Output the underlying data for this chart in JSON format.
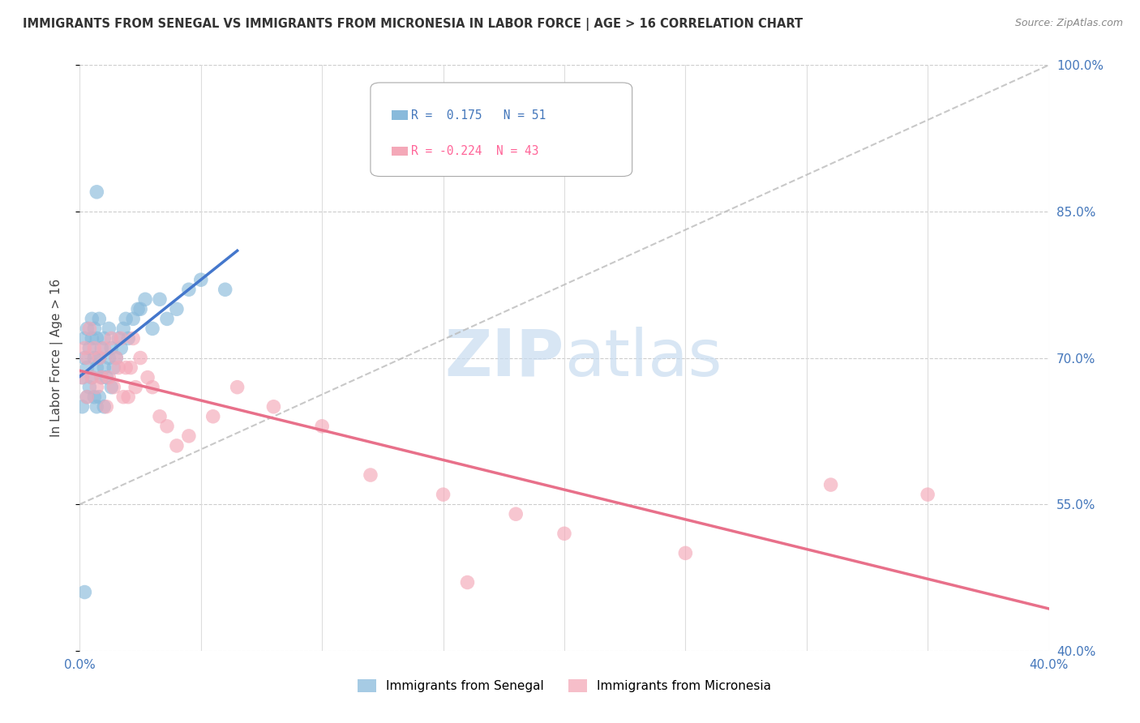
{
  "title": "IMMIGRANTS FROM SENEGAL VS IMMIGRANTS FROM MICRONESIA IN LABOR FORCE | AGE > 16 CORRELATION CHART",
  "source": "Source: ZipAtlas.com",
  "ylabel": "In Labor Force | Age > 16",
  "r_senegal": 0.175,
  "n_senegal": 51,
  "r_micronesia": -0.224,
  "n_micronesia": 43,
  "xlim": [
    0.0,
    0.4
  ],
  "ylim": [
    0.4,
    1.0
  ],
  "yticks": [
    0.4,
    0.55,
    0.7,
    0.85,
    1.0
  ],
  "xticks": [
    0.0,
    0.05,
    0.1,
    0.15,
    0.2,
    0.25,
    0.3,
    0.35,
    0.4
  ],
  "color_senegal": "#89BADB",
  "color_micronesia": "#F4A8B8",
  "color_sen_line": "#4477CC",
  "color_mic_line": "#E8708A",
  "color_diag": "#BBBBBB",
  "watermark_color": "#E0E8F0",
  "senegal_x": [
    0.001,
    0.001,
    0.002,
    0.002,
    0.003,
    0.003,
    0.003,
    0.004,
    0.004,
    0.005,
    0.005,
    0.005,
    0.006,
    0.006,
    0.006,
    0.007,
    0.007,
    0.007,
    0.008,
    0.008,
    0.008,
    0.009,
    0.009,
    0.01,
    0.01,
    0.01,
    0.011,
    0.012,
    0.012,
    0.013,
    0.013,
    0.014,
    0.015,
    0.016,
    0.017,
    0.018,
    0.019,
    0.02,
    0.022,
    0.024,
    0.025,
    0.027,
    0.03,
    0.033,
    0.036,
    0.04,
    0.045,
    0.05,
    0.06,
    0.002,
    0.007
  ],
  "senegal_y": [
    0.65,
    0.68,
    0.7,
    0.72,
    0.66,
    0.69,
    0.73,
    0.67,
    0.71,
    0.68,
    0.72,
    0.74,
    0.66,
    0.7,
    0.73,
    0.65,
    0.69,
    0.72,
    0.66,
    0.7,
    0.74,
    0.68,
    0.71,
    0.65,
    0.69,
    0.72,
    0.68,
    0.7,
    0.73,
    0.67,
    0.71,
    0.69,
    0.7,
    0.72,
    0.71,
    0.73,
    0.74,
    0.72,
    0.74,
    0.75,
    0.75,
    0.76,
    0.73,
    0.76,
    0.74,
    0.75,
    0.77,
    0.78,
    0.77,
    0.46,
    0.87
  ],
  "micronesia_x": [
    0.001,
    0.002,
    0.003,
    0.003,
    0.004,
    0.005,
    0.006,
    0.007,
    0.008,
    0.009,
    0.01,
    0.011,
    0.012,
    0.013,
    0.014,
    0.015,
    0.016,
    0.017,
    0.018,
    0.019,
    0.02,
    0.021,
    0.022,
    0.023,
    0.025,
    0.028,
    0.03,
    0.033,
    0.036,
    0.04,
    0.045,
    0.055,
    0.065,
    0.08,
    0.1,
    0.12,
    0.15,
    0.18,
    0.2,
    0.25,
    0.31,
    0.35,
    0.16
  ],
  "micronesia_y": [
    0.68,
    0.71,
    0.66,
    0.7,
    0.73,
    0.68,
    0.71,
    0.67,
    0.7,
    0.68,
    0.71,
    0.65,
    0.68,
    0.72,
    0.67,
    0.7,
    0.69,
    0.72,
    0.66,
    0.69,
    0.66,
    0.69,
    0.72,
    0.67,
    0.7,
    0.68,
    0.67,
    0.64,
    0.63,
    0.61,
    0.62,
    0.64,
    0.67,
    0.65,
    0.63,
    0.58,
    0.56,
    0.54,
    0.52,
    0.5,
    0.57,
    0.56,
    0.47
  ]
}
